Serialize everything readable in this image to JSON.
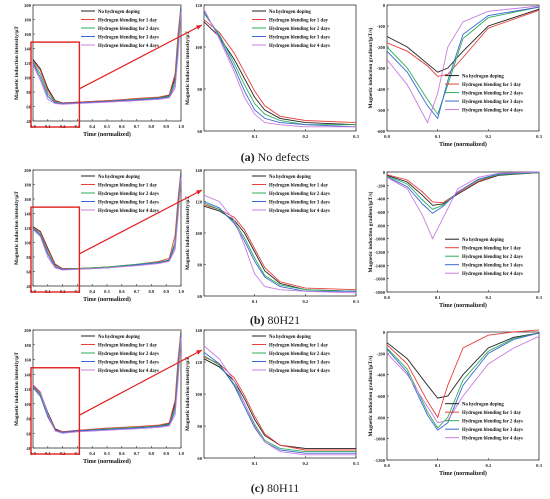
{
  "legend": [
    "No hydrogen doping",
    "Hydrogen blending for 1 day",
    "Hydrogen blending for 2 days",
    "Hydrogen blending for 3 days",
    "Hydrogen blending for 4 days"
  ],
  "series_colors": [
    "#222222",
    "#e8413c",
    "#2fae57",
    "#3a66d6",
    "#c77ddf"
  ],
  "callout_color": "#e1201d",
  "captions": [
    {
      "letter": "(a)",
      "text": "No defects"
    },
    {
      "letter": "(b)",
      "text": "80H21"
    },
    {
      "letter": "(c)",
      "text": "80H11"
    }
  ],
  "chart_data": [
    {
      "id": "a-full",
      "type": "line",
      "ylabel": "Magnetic induction intensity/μT",
      "xlabel": "Time (normalized)",
      "xlim": [
        0,
        1.0
      ],
      "ylim": [
        40,
        200
      ],
      "xticks": [
        "0.0",
        "0.1",
        "0.2",
        "0.3",
        "0.4",
        "0.5",
        "0.6",
        "0.7",
        "0.8",
        "0.9",
        "1.0"
      ],
      "yticks": [
        "40",
        "60",
        "80",
        "100",
        "120",
        "140",
        "160",
        "180",
        "200"
      ],
      "x": [
        0,
        0.05,
        0.1,
        0.15,
        0.2,
        0.3,
        0.5,
        0.7,
        0.85,
        0.92,
        0.96,
        0.98,
        1.0
      ],
      "series": [
        {
          "name": "No hydrogen doping",
          "values": [
            125,
            112,
            85,
            68,
            65,
            66,
            68,
            70,
            72,
            75,
            100,
            150,
            200
          ]
        },
        {
          "name": "Hydrogen blending for 1 day",
          "values": [
            123,
            110,
            82,
            67,
            65,
            66,
            68,
            71,
            73,
            76,
            105,
            160,
            200
          ]
        },
        {
          "name": "Hydrogen blending for 2 days",
          "values": [
            121,
            105,
            78,
            66,
            64,
            65,
            67,
            70,
            72,
            74,
            95,
            150,
            198
          ]
        },
        {
          "name": "Hydrogen blending for 3 days",
          "values": [
            120,
            100,
            74,
            65,
            64,
            65,
            67,
            69,
            71,
            73,
            90,
            140,
            195
          ]
        },
        {
          "name": "Hydrogen blending for 4 days",
          "values": [
            118,
            96,
            70,
            64,
            63,
            64,
            66,
            68,
            70,
            72,
            85,
            130,
            190
          ]
        }
      ]
    },
    {
      "id": "a-zoom",
      "type": "line",
      "ylabel": "Magnetic induction intensity/μT",
      "xlabel": "",
      "xlim": [
        0,
        0.3
      ],
      "ylim": [
        60,
        120
      ],
      "xticks": [
        "0.1",
        "0.2",
        "0.3"
      ],
      "yticks": [
        "60",
        "80",
        "100",
        "120"
      ],
      "x": [
        0,
        0.03,
        0.06,
        0.08,
        0.1,
        0.12,
        0.15,
        0.2,
        0.3
      ],
      "series": [
        {
          "name": "No hydrogen doping",
          "values": [
            112,
            105,
            94,
            85,
            76,
            70,
            66,
            64,
            63
          ]
        },
        {
          "name": "Hydrogen blending for 1 day",
          "values": [
            113,
            107,
            97,
            88,
            79,
            72,
            67,
            65,
            64
          ]
        },
        {
          "name": "Hydrogen blending for 2 days",
          "values": [
            116,
            106,
            92,
            82,
            73,
            68,
            65,
            63,
            63
          ]
        },
        {
          "name": "Hydrogen blending for 3 days",
          "values": [
            117,
            105,
            90,
            79,
            70,
            66,
            64,
            63,
            62
          ]
        },
        {
          "name": "Hydrogen blending for 4 days",
          "values": [
            118,
            104,
            88,
            76,
            68,
            64,
            63,
            62,
            62
          ]
        }
      ]
    },
    {
      "id": "a-grad",
      "type": "line",
      "ylabel": "Magnetic induction gradient/(μT/s)",
      "xlabel": "Time (normalized)",
      "xlim": [
        0,
        0.3
      ],
      "ylim": [
        -600,
        0
      ],
      "xticks": [
        "0.0",
        "0.1",
        "0.2",
        "0.3"
      ],
      "yticks": [
        "-600",
        "-500",
        "-400",
        "-300",
        "-200",
        "-100",
        "0"
      ],
      "x": [
        0,
        0.04,
        0.08,
        0.1,
        0.12,
        0.15,
        0.2,
        0.3
      ],
      "series": [
        {
          "name": "No hydrogen doping",
          "values": [
            -150,
            -200,
            -280,
            -320,
            -300,
            -220,
            -100,
            -20
          ]
        },
        {
          "name": "Hydrogen blending for 1 day",
          "values": [
            -180,
            -220,
            -290,
            -340,
            -330,
            -250,
            -110,
            -25
          ]
        },
        {
          "name": "Hydrogen blending for 2 days",
          "values": [
            -200,
            -300,
            -450,
            -520,
            -380,
            -160,
            -60,
            -10
          ]
        },
        {
          "name": "Hydrogen blending for 3 days",
          "values": [
            -220,
            -320,
            -480,
            -540,
            -360,
            -140,
            -50,
            -10
          ]
        },
        {
          "name": "Hydrogen blending for 4 days",
          "values": [
            -260,
            -380,
            -560,
            -420,
            -200,
            -80,
            -30,
            -5
          ]
        }
      ]
    },
    {
      "id": "b-full",
      "type": "line",
      "ylabel": "Magnetic induction intensity/μT",
      "xlabel": "Time (normalized)",
      "xlim": [
        0,
        1.0
      ],
      "ylim": [
        40,
        200
      ],
      "xticks": [
        "0.0",
        "0.1",
        "0.2",
        "0.3",
        "0.4",
        "0.5",
        "0.6",
        "0.7",
        "0.8",
        "0.9",
        "1.0"
      ],
      "yticks": [
        "40",
        "60",
        "80",
        "100",
        "120",
        "140",
        "160",
        "180",
        "200"
      ],
      "x": [
        0,
        0.05,
        0.1,
        0.15,
        0.2,
        0.3,
        0.5,
        0.7,
        0.85,
        0.92,
        0.96,
        0.98,
        1.0
      ],
      "series": [
        {
          "name": "No hydrogen doping",
          "values": [
            122,
            115,
            92,
            70,
            64,
            64,
            66,
            69,
            72,
            76,
            100,
            150,
            200
          ]
        },
        {
          "name": "Hydrogen blending for 1 day",
          "values": [
            121,
            114,
            90,
            69,
            64,
            64,
            66,
            70,
            74,
            78,
            110,
            160,
            200
          ]
        },
        {
          "name": "Hydrogen blending for 2 days",
          "values": [
            120,
            112,
            86,
            67,
            63,
            64,
            66,
            70,
            73,
            76,
            100,
            150,
            198
          ]
        },
        {
          "name": "Hydrogen blending for 3 days",
          "values": [
            119,
            110,
            84,
            66,
            63,
            63,
            65,
            69,
            72,
            75,
            95,
            140,
            195
          ]
        },
        {
          "name": "Hydrogen blending for 4 days",
          "values": [
            118,
            108,
            80,
            65,
            62,
            63,
            65,
            68,
            71,
            74,
            90,
            135,
            190
          ]
        }
      ]
    },
    {
      "id": "b-zoom",
      "type": "line",
      "ylabel": "Magnetic induction intensity/μT",
      "xlabel": "",
      "xlim": [
        0,
        0.3
      ],
      "ylim": [
        60,
        140
      ],
      "xticks": [
        "0.1",
        "0.2",
        "0.3"
      ],
      "yticks": [
        "60",
        "80",
        "100",
        "120",
        "140"
      ],
      "x": [
        0,
        0.03,
        0.06,
        0.08,
        0.1,
        0.12,
        0.15,
        0.2,
        0.3
      ],
      "series": [
        {
          "name": "No hydrogen doping",
          "values": [
            117,
            114,
            108,
            100,
            88,
            76,
            68,
            64,
            63
          ]
        },
        {
          "name": "Hydrogen blending for 1 day",
          "values": [
            118,
            115,
            110,
            102,
            90,
            78,
            69,
            65,
            64
          ]
        },
        {
          "name": "Hydrogen blending for 2 days",
          "values": [
            119,
            115,
            107,
            97,
            84,
            73,
            67,
            64,
            63
          ]
        },
        {
          "name": "Hydrogen blending for 3 days",
          "values": [
            120,
            116,
            106,
            95,
            82,
            72,
            66,
            63,
            63
          ]
        },
        {
          "name": "Hydrogen blending for 4 days",
          "values": [
            124,
            120,
            108,
            92,
            74,
            66,
            64,
            63,
            62
          ]
        }
      ]
    },
    {
      "id": "b-grad",
      "type": "line",
      "ylabel": "Magnetic induction gradient/(μT/s)",
      "xlabel": "Time (normalized)",
      "xlim": [
        0,
        0.3
      ],
      "ylim": [
        -1800,
        0
      ],
      "xticks": [
        "0.0",
        "0.1",
        "0.2",
        "0.3"
      ],
      "yticks": [
        "-1800",
        "-1600",
        "-1400",
        "-1200",
        "-1000",
        "-800",
        "-600",
        "-400",
        "-200",
        "0"
      ],
      "x": [
        0,
        0.04,
        0.07,
        0.09,
        0.11,
        0.14,
        0.18,
        0.22,
        0.3
      ],
      "series": [
        {
          "name": "No hydrogen doping",
          "values": [
            -50,
            -150,
            -350,
            -500,
            -480,
            -330,
            -150,
            -50,
            -10
          ]
        },
        {
          "name": "Hydrogen blending for 1 day",
          "values": [
            -40,
            -120,
            -300,
            -450,
            -460,
            -320,
            -140,
            -40,
            -5
          ]
        },
        {
          "name": "Hydrogen blending for 2 days",
          "values": [
            -60,
            -180,
            -420,
            -560,
            -500,
            -300,
            -120,
            -40,
            -10
          ]
        },
        {
          "name": "Hydrogen blending for 3 days",
          "values": [
            -70,
            -220,
            -480,
            -620,
            -520,
            -300,
            -110,
            -30,
            -5
          ]
        },
        {
          "name": "Hydrogen blending for 4 days",
          "values": [
            -80,
            -250,
            -650,
            -1000,
            -700,
            -250,
            -80,
            -20,
            0
          ]
        }
      ]
    },
    {
      "id": "c-full",
      "type": "line",
      "ylabel": "Magnetic induction intensity/μT",
      "xlabel": "Time (normalized)",
      "xlim": [
        0,
        1.0
      ],
      "ylim": [
        40,
        200
      ],
      "xticks": [
        "0.0",
        "0.1",
        "0.2",
        "0.3",
        "0.4",
        "0.5",
        "0.6",
        "0.7",
        "0.8",
        "0.9",
        "1.0"
      ],
      "yticks": [
        "40",
        "60",
        "80",
        "100",
        "120",
        "140",
        "160",
        "180",
        "200"
      ],
      "x": [
        0,
        0.05,
        0.1,
        0.15,
        0.2,
        0.3,
        0.5,
        0.7,
        0.85,
        0.92,
        0.96,
        0.98,
        1.0
      ],
      "series": [
        {
          "name": "No hydrogen doping",
          "values": [
            125,
            115,
            88,
            66,
            62,
            64,
            66,
            68,
            70,
            73,
            100,
            150,
            200
          ]
        },
        {
          "name": "Hydrogen blending for 1 day",
          "values": [
            124,
            114,
            86,
            65,
            62,
            64,
            67,
            69,
            71,
            74,
            105,
            160,
            200
          ]
        },
        {
          "name": "Hydrogen blending for 2 days",
          "values": [
            123,
            112,
            84,
            64,
            61,
            63,
            66,
            68,
            70,
            72,
            95,
            150,
            198
          ]
        },
        {
          "name": "Hydrogen blending for 3 days",
          "values": [
            122,
            110,
            82,
            64,
            61,
            63,
            65,
            67,
            69,
            71,
            90,
            140,
            195
          ]
        },
        {
          "name": "Hydrogen blending for 4 days",
          "values": [
            126,
            116,
            86,
            63,
            60,
            62,
            64,
            66,
            68,
            70,
            85,
            130,
            190
          ]
        }
      ]
    },
    {
      "id": "c-zoom",
      "type": "line",
      "ylabel": "Magnetic induction intensity/μT",
      "xlabel": "",
      "xlim": [
        0,
        0.3
      ],
      "ylim": [
        60,
        140
      ],
      "xticks": [
        "0.1",
        "0.2",
        "0.3"
      ],
      "yticks": [
        "60",
        "80",
        "100",
        "120",
        "140"
      ],
      "x": [
        0,
        0.03,
        0.06,
        0.08,
        0.1,
        0.12,
        0.15,
        0.2,
        0.3
      ],
      "series": [
        {
          "name": "No hydrogen doping",
          "values": [
            122,
            117,
            108,
            97,
            84,
            74,
            68,
            66,
            66
          ]
        },
        {
          "name": "Hydrogen blending for 1 day",
          "values": [
            123,
            119,
            110,
            99,
            86,
            75,
            68,
            65,
            65
          ]
        },
        {
          "name": "Hydrogen blending for 2 days",
          "values": [
            124,
            118,
            106,
            94,
            81,
            71,
            66,
            64,
            64
          ]
        },
        {
          "name": "Hydrogen blending for 3 days",
          "values": [
            126,
            119,
            105,
            92,
            79,
            70,
            65,
            63,
            63
          ]
        },
        {
          "name": "Hydrogen blending for 4 days",
          "values": [
            130,
            122,
            108,
            94,
            80,
            70,
            64,
            62,
            62
          ]
        }
      ]
    },
    {
      "id": "c-grad",
      "type": "line",
      "ylabel": "Magnetic induction gradient/(μT/s)",
      "xlabel": "Time (normalized)",
      "xlim": [
        0,
        0.3
      ],
      "ylim": [
        -1200,
        0
      ],
      "xticks": [
        "0.0",
        "0.1",
        "0.2",
        "0.3"
      ],
      "yticks": [
        "-1200",
        "-1000",
        "-800",
        "-600",
        "-400",
        "-200",
        "0"
      ],
      "x": [
        0,
        0.04,
        0.08,
        0.1,
        0.12,
        0.15,
        0.2,
        0.25,
        0.3
      ],
      "series": [
        {
          "name": "No hydrogen doping",
          "values": [
            -100,
            -250,
            -500,
            -620,
            -600,
            -400,
            -150,
            -50,
            -10
          ]
        },
        {
          "name": "Hydrogen blending for 1 day",
          "values": [
            -120,
            -300,
            -650,
            -800,
            -500,
            -150,
            -30,
            0,
            20
          ]
        },
        {
          "name": "Hydrogen blending for 2 days",
          "values": [
            -150,
            -350,
            -750,
            -900,
            -800,
            -450,
            -180,
            -60,
            -10
          ]
        },
        {
          "name": "Hydrogen blending for 3 days",
          "values": [
            -160,
            -380,
            -780,
            -920,
            -850,
            -500,
            -200,
            -70,
            -10
          ]
        },
        {
          "name": "Hydrogen blending for 4 days",
          "values": [
            -200,
            -400,
            -700,
            -850,
            -830,
            -600,
            -300,
            -150,
            -40
          ]
        }
      ]
    }
  ]
}
